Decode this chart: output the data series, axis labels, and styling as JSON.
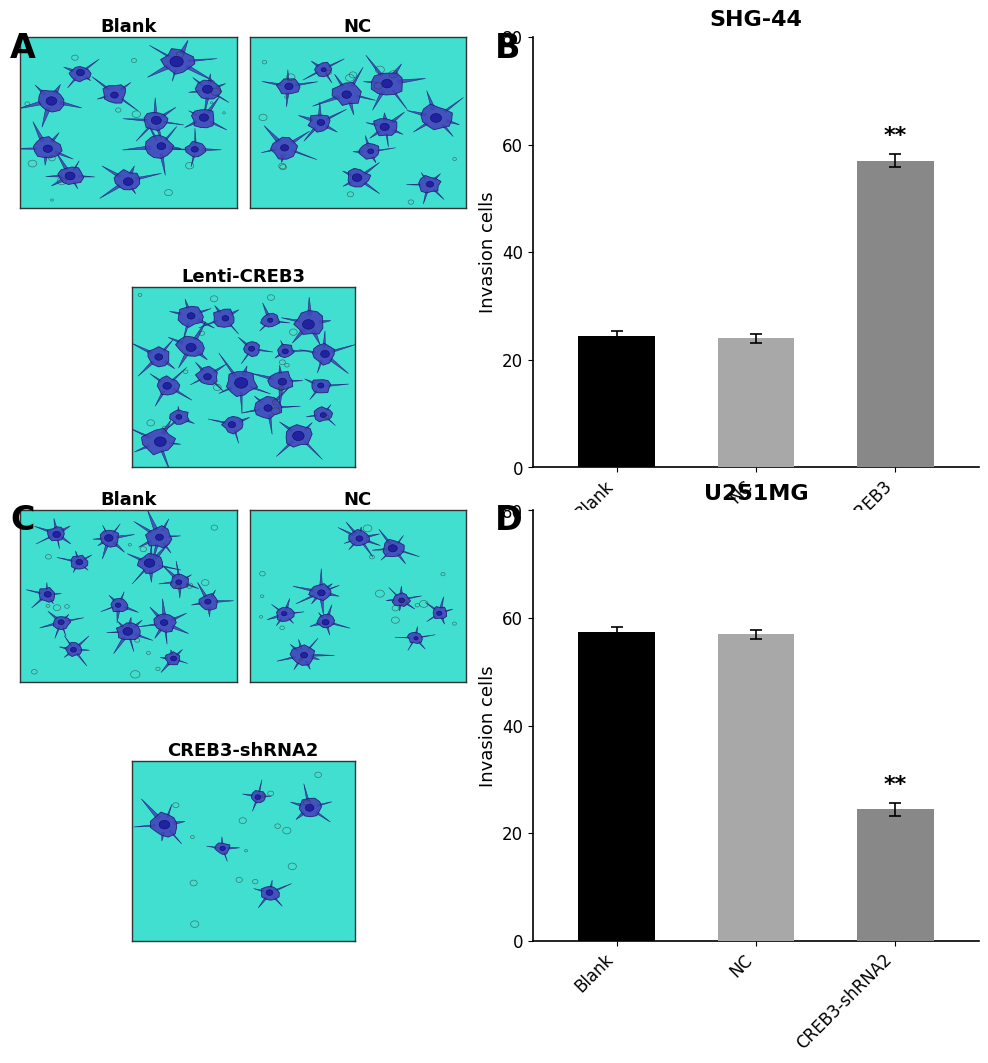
{
  "panel_B": {
    "title": "SHG-44",
    "categories": [
      "Blank",
      "NC",
      "Lenti-CREB3"
    ],
    "values": [
      24.5,
      24.0,
      57.0
    ],
    "errors": [
      0.8,
      0.8,
      1.2
    ],
    "colors": [
      "#000000",
      "#a8a8a8",
      "#888888"
    ],
    "ylabel": "Invasion cells",
    "ylim": [
      0,
      80
    ],
    "yticks": [
      0,
      20,
      40,
      60,
      80
    ],
    "sig_idx": 2,
    "sig_text": "**",
    "sig_fontsize": 16
  },
  "panel_D": {
    "title": "U251MG",
    "categories": [
      "Blank",
      "NC",
      "CREB3-shRNA2"
    ],
    "values": [
      57.5,
      57.0,
      24.5
    ],
    "errors": [
      0.8,
      0.8,
      1.2
    ],
    "colors": [
      "#000000",
      "#a8a8a8",
      "#888888"
    ],
    "ylabel": "Invasion cells",
    "ylim": [
      0,
      80
    ],
    "yticks": [
      0,
      20,
      40,
      60,
      80
    ],
    "sig_idx": 2,
    "sig_text": "**",
    "sig_fontsize": 16
  },
  "panel_label_fontsize": 24,
  "axis_fontsize": 13,
  "title_fontsize": 16,
  "tick_fontsize": 12,
  "bar_width": 0.55,
  "background_color": "#ffffff",
  "cell_bg_color": "#40dfd0",
  "img_label_fontsize": 13
}
